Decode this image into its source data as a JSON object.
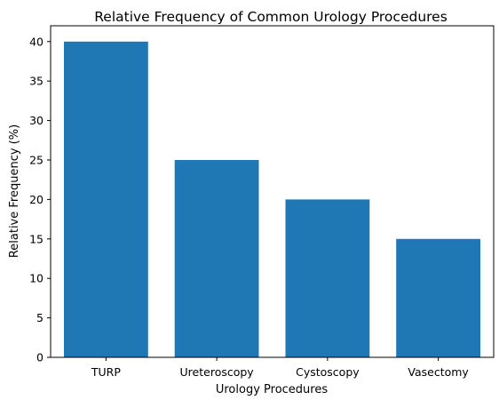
{
  "chart_data": {
    "type": "bar",
    "title": "Relative Frequency of Common Urology Procedures",
    "xlabel": "Urology Procedures",
    "ylabel": "Relative Frequency (%)",
    "categories": [
      "TURP",
      "Ureteroscopy",
      "Cystoscopy",
      "Vasectomy"
    ],
    "values": [
      40,
      25,
      20,
      15
    ],
    "ylim": [
      0,
      42
    ],
    "yticks": [
      0,
      5,
      10,
      15,
      20,
      25,
      30,
      35,
      40
    ],
    "grid": false,
    "legend": "none",
    "bar_color": "#1f77b4"
  }
}
